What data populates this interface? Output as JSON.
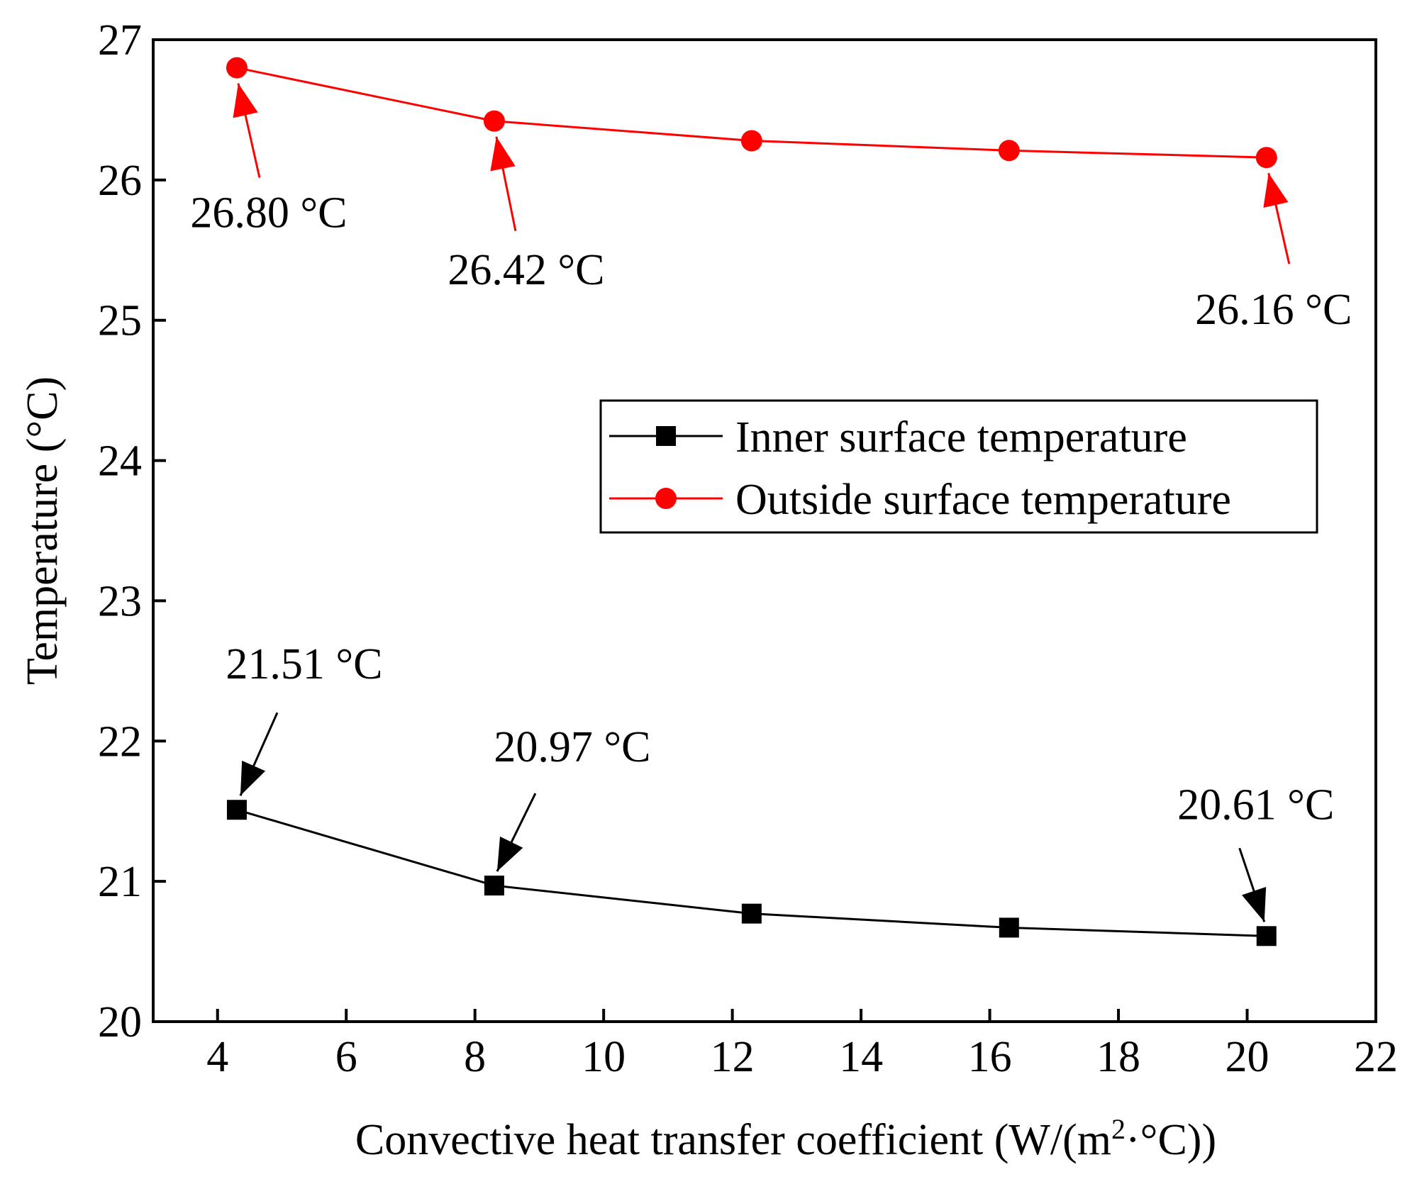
{
  "chart_data": {
    "type": "line",
    "xlabel": "Convective heat transfer coefficient (W/(m²·°C))",
    "xlabel_parts": {
      "before": "Convective heat transfer coefficient (W/(m",
      "sup": "2",
      "after": "·°C))"
    },
    "ylabel": "Temperature (°C)",
    "xlim": [
      3,
      22
    ],
    "ylim": [
      20,
      27
    ],
    "xticks": [
      4,
      6,
      8,
      10,
      12,
      14,
      16,
      18,
      20,
      22
    ],
    "yticks": [
      20,
      21,
      22,
      23,
      24,
      25,
      26,
      27
    ],
    "grid": false,
    "legend_position": "center-right",
    "x": [
      4.3,
      8.3,
      12.3,
      16.3,
      20.3
    ],
    "series": [
      {
        "name": "Inner surface temperature",
        "color": "#000000",
        "marker": "square",
        "values": [
          21.51,
          20.97,
          20.77,
          20.67,
          20.61
        ]
      },
      {
        "name": "Outside surface temperature",
        "color": "#ff0000",
        "marker": "circle",
        "values": [
          26.8,
          26.42,
          26.28,
          26.21,
          26.16
        ]
      }
    ],
    "annotations": [
      {
        "text": "26.80 °C",
        "series": 1,
        "point": 0,
        "color": "#ff0000"
      },
      {
        "text": "26.42 °C",
        "series": 1,
        "point": 1,
        "color": "#ff0000"
      },
      {
        "text": "26.16 °C",
        "series": 1,
        "point": 4,
        "color": "#ff0000"
      },
      {
        "text": "21.51 °C",
        "series": 0,
        "point": 0,
        "color": "#000000"
      },
      {
        "text": "20.97 °C",
        "series": 0,
        "point": 1,
        "color": "#000000"
      },
      {
        "text": "20.61 °C",
        "series": 0,
        "point": 4,
        "color": "#000000"
      }
    ]
  }
}
